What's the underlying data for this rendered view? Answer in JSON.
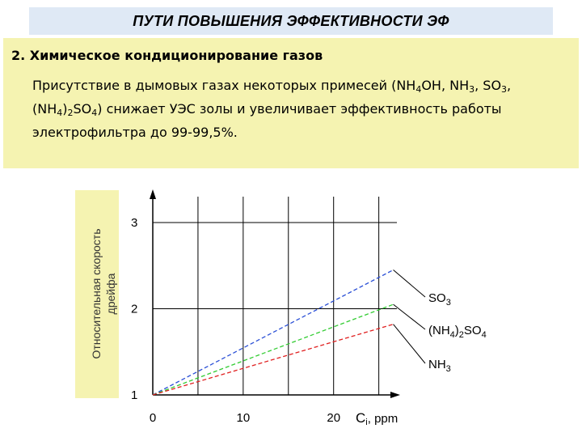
{
  "header": {
    "title": "ПУТИ  ПОВЫШЕНИЯ  ЭФФЕКТИВНОСТИ ЭФ"
  },
  "content": {
    "heading": "2. Химическое кондиционирование газов",
    "p_a": "Присутствие в дымовых газах некоторых примесей (NH",
    "p_b": "4",
    "p_c": "OH, NH",
    "p_d": "3",
    "p_e": ", SO",
    "p_f": "3",
    "p_g": ",(NH",
    "p_h": "4",
    "p_i": ")",
    "p_j": "2",
    "p_k": "SO",
    "p_l": "4",
    "p_m": ") снижает УЭС золы и увеличивает эффективность работы электрофильтра до 99-99,5%."
  },
  "chart_data": {
    "type": "line",
    "ylabel_line1": "Относительная скорость",
    "ylabel_line2": "дрейфа",
    "xlabel_main": "C",
    "xlabel_sub": "i",
    "xlabel_unit": ", ppm",
    "xlim": [
      0,
      27
    ],
    "ylim": [
      1,
      3.3
    ],
    "x_ticks": [
      0,
      10,
      20
    ],
    "y_ticks": [
      1,
      2,
      3
    ],
    "grid": true,
    "series": [
      {
        "name": "SO3",
        "label_main": "SO",
        "label_sub": "3",
        "color": "#2a4fd6",
        "x": [
          0,
          26.6
        ],
        "y": [
          1,
          2.45
        ]
      },
      {
        "name": "(NH4)2SO4",
        "label_p1": "(NH",
        "label_s1": "4",
        "label_p2": ")",
        "label_s2": "2",
        "label_p3": "SO",
        "label_s3": "4",
        "color": "#33cc33",
        "x": [
          0,
          26.6
        ],
        "y": [
          1,
          2.05
        ]
      },
      {
        "name": "NH3",
        "label_main": "NH",
        "label_sub": "3",
        "color": "#e02020",
        "x": [
          0,
          26.6
        ],
        "y": [
          1,
          1.82
        ]
      }
    ]
  }
}
